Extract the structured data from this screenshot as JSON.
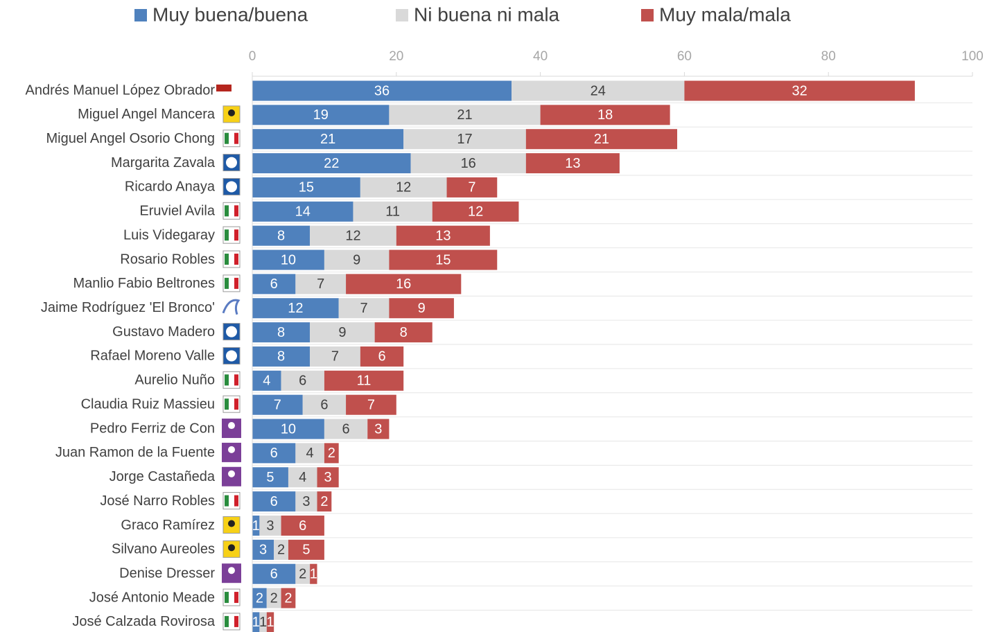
{
  "chart_data": {
    "type": "stacked_bar_horizontal",
    "categories": [
      "Andrés Manuel López Obrador",
      "Miguel Angel Mancera",
      "Miguel Angel Osorio Chong",
      "Margarita Zavala",
      "Ricardo Anaya",
      "Eruviel Avila",
      "Luis Videgaray",
      "Rosario Robles",
      "Manlio Fabio Beltrones",
      "Jaime Rodríguez 'El Bronco'",
      "Gustavo Madero",
      "Rafael Moreno Valle",
      "Aurelio Nuño",
      "Claudia Ruiz Massieu",
      "Pedro Ferriz de Con",
      "Juan Ramon de la Fuente",
      "Jorge Castañeda",
      "José Narro Robles",
      "Graco Ramírez",
      "Silvano Aureoles",
      "Denise Dresser",
      "José Antonio Meade",
      "José Calzada Rovirosa"
    ],
    "series": [
      {
        "name": "Muy buena/buena",
        "color": "#4f81bd",
        "values": [
          36,
          19,
          21,
          22,
          15,
          14,
          8,
          10,
          6,
          12,
          8,
          8,
          4,
          7,
          10,
          6,
          5,
          6,
          1,
          3,
          6,
          2,
          1
        ]
      },
      {
        "name": "Ni buena ni mala",
        "color": "#d9d9d9",
        "values": [
          24,
          21,
          17,
          16,
          12,
          11,
          12,
          9,
          7,
          7,
          9,
          7,
          6,
          6,
          6,
          4,
          4,
          3,
          3,
          2,
          2,
          2,
          1
        ]
      },
      {
        "name": "Muy mala/mala",
        "color": "#c0504d",
        "values": [
          32,
          18,
          21,
          13,
          7,
          12,
          13,
          15,
          16,
          9,
          8,
          6,
          11,
          7,
          3,
          2,
          3,
          2,
          6,
          5,
          1,
          2,
          1
        ]
      }
    ],
    "xlim": [
      0,
      100
    ],
    "xticks": [
      0,
      20,
      40,
      60,
      80,
      100
    ],
    "legend": "top"
  }
}
